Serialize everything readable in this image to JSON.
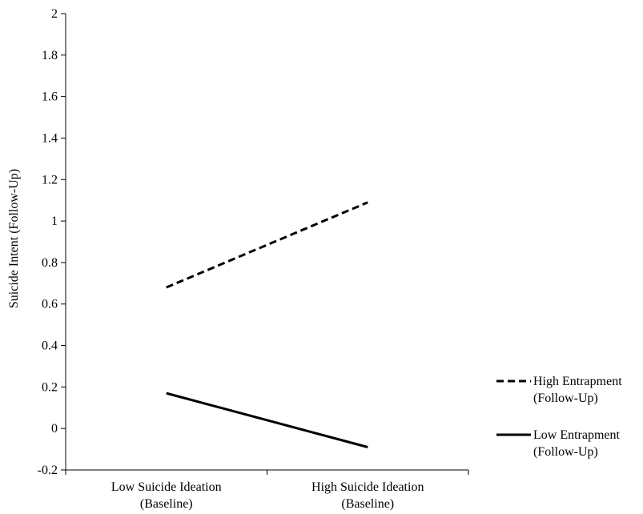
{
  "chart_data": {
    "type": "line",
    "title": "",
    "ylabel": "Suicide Intent (Follow-Up)",
    "xlabel": "",
    "ylim": [
      -0.2,
      2
    ],
    "yticks": [
      "2",
      "1.8",
      "1.6",
      "1.4",
      "1.2",
      "1",
      "0.8",
      "0.6",
      "0.4",
      "0.2",
      "0",
      "-0.2"
    ],
    "categories": [
      [
        "Low Suicide Ideation",
        "(Baseline)"
      ],
      [
        "High Suicide Ideation",
        "(Baseline)"
      ]
    ],
    "series": [
      {
        "name": [
          "High Entrapment",
          "(Follow-Up)"
        ],
        "style": "dashed",
        "values": [
          0.68,
          1.09
        ]
      },
      {
        "name": [
          "Low Entrapment",
          "(Follow-Up)"
        ],
        "style": "solid",
        "values": [
          0.17,
          -0.09
        ]
      }
    ],
    "grid": false,
    "legend_position": "right",
    "colors": {
      "line": "#000000",
      "axis": "#000000",
      "background": "#ffffff"
    }
  }
}
